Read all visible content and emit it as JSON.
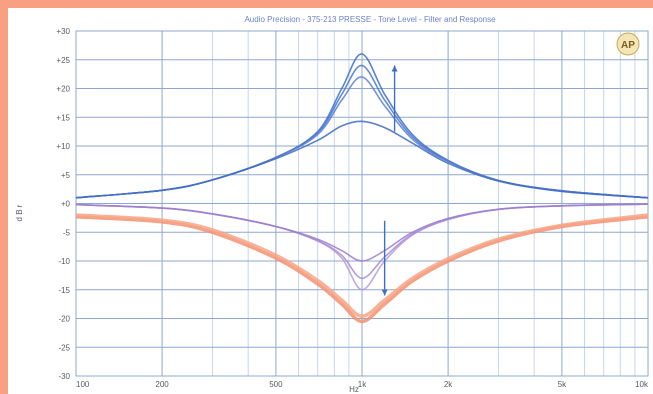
{
  "window": {
    "title": "Audio Precision - 375-213 PRESSE - Tone Level - Filter and Response"
  },
  "chart_data": {
    "type": "line",
    "title": "Audio Precision - 375-213 PRESSE - Tone Level - Filter and Response",
    "xlabel": "Hz",
    "ylabel": "d B r",
    "x_scale": "log",
    "xlim": [
      100,
      10000
    ],
    "ylim": [
      -30,
      30
    ],
    "grid": true,
    "x_ticks": [
      {
        "v": 100,
        "label": "100"
      },
      {
        "v": 200,
        "label": "200"
      },
      {
        "v": 500,
        "label": "500"
      },
      {
        "v": 1000,
        "label": "1k"
      },
      {
        "v": 2000,
        "label": "2k"
      },
      {
        "v": 5000,
        "label": "5k"
      },
      {
        "v": 10000,
        "label": "10k"
      }
    ],
    "y_ticks": [
      {
        "v": 30,
        "label": "+30"
      },
      {
        "v": 25,
        "label": "+25"
      },
      {
        "v": 20,
        "label": "+20"
      },
      {
        "v": 15,
        "label": "+15"
      },
      {
        "v": 10,
        "label": "+10"
      },
      {
        "v": 5,
        "label": "+5"
      },
      {
        "v": 0,
        "label": "+0"
      },
      {
        "v": -5,
        "label": "-5"
      },
      {
        "v": -10,
        "label": "-10"
      },
      {
        "v": -15,
        "label": "-15"
      },
      {
        "v": -20,
        "label": "-20"
      },
      {
        "v": -25,
        "label": "-25"
      },
      {
        "v": -30,
        "label": "-30"
      }
    ],
    "annotations": [
      {
        "text": "AP",
        "type": "logo"
      }
    ],
    "series": [
      {
        "color": "#3b6fc9",
        "group": "boost",
        "x": [
          100,
          200,
          300,
          500,
          700,
          850,
          1000,
          1200,
          1500,
          2000,
          3000,
          5000,
          10000
        ],
        "y": [
          1,
          2.3,
          4.1,
          8.0,
          12.5,
          20.0,
          26.0,
          19.0,
          12.0,
          7.5,
          4.0,
          2.2,
          1.0
        ]
      },
      {
        "color": "#4577cf",
        "group": "boost",
        "x": [
          100,
          200,
          300,
          500,
          700,
          850,
          1000,
          1200,
          1500,
          2000,
          3000,
          5000,
          10000
        ],
        "y": [
          1,
          2.3,
          4.1,
          8.0,
          12.3,
          19.0,
          24.0,
          18.0,
          11.6,
          7.4,
          4.0,
          2.2,
          1.0
        ]
      },
      {
        "color": "#5a7fd0",
        "group": "boost",
        "x": [
          100,
          200,
          300,
          500,
          700,
          850,
          1000,
          1200,
          1500,
          2000,
          3000,
          5000,
          10000
        ],
        "y": [
          1,
          2.3,
          4.1,
          8.0,
          12.0,
          18.0,
          22.0,
          17.0,
          11.2,
          7.3,
          4.0,
          2.2,
          1.0
        ]
      },
      {
        "color": "#3f6bc2",
        "group": "boost",
        "x": [
          100,
          200,
          300,
          500,
          700,
          850,
          1000,
          1200,
          1500,
          2000,
          3000,
          5000,
          10000
        ],
        "y": [
          1,
          2.3,
          4.1,
          7.8,
          11.0,
          13.5,
          14.3,
          13.2,
          10.5,
          7.0,
          3.9,
          2.1,
          1.0
        ]
      },
      {
        "color": "#b59bdc",
        "group": "cut",
        "x": [
          100,
          200,
          300,
          500,
          700,
          850,
          1000,
          1200,
          1500,
          2000,
          3000,
          5000,
          10000
        ],
        "y": [
          -0.2,
          -0.8,
          -1.8,
          -4.0,
          -6.5,
          -9.5,
          -15.0,
          -10.0,
          -5.5,
          -2.8,
          -1.0,
          -0.4,
          -0.1
        ]
      },
      {
        "color": "#a88ad6",
        "group": "cut",
        "x": [
          100,
          200,
          300,
          500,
          700,
          850,
          1000,
          1200,
          1500,
          2000,
          3000,
          5000,
          10000
        ],
        "y": [
          -0.2,
          -0.8,
          -1.8,
          -4.0,
          -6.5,
          -9.0,
          -13.0,
          -9.3,
          -5.3,
          -2.7,
          -1.0,
          -0.4,
          -0.1
        ]
      },
      {
        "color": "#9a7ccf",
        "group": "cut",
        "x": [
          100,
          200,
          300,
          500,
          700,
          850,
          1000,
          1200,
          1500,
          2000,
          3000,
          5000,
          10000
        ],
        "y": [
          -0.2,
          -0.8,
          -1.8,
          -4.0,
          -6.2,
          -8.2,
          -10.0,
          -8.2,
          -5.0,
          -2.6,
          -1.0,
          -0.4,
          -0.1
        ]
      },
      {
        "color": "#f29070",
        "group": "cut",
        "x": [
          100,
          200,
          300,
          500,
          700,
          850,
          1000,
          1200,
          1500,
          2000,
          3000,
          5000,
          10000
        ],
        "y": [
          -2.3,
          -3.2,
          -5.0,
          -9.5,
          -14.0,
          -17.5,
          -20.5,
          -17.5,
          -13.5,
          -10.0,
          -6.5,
          -4.0,
          -2.3
        ]
      },
      {
        "color": "#f7a486",
        "group": "cut",
        "x": [
          100,
          200,
          300,
          500,
          700,
          850,
          1000,
          1200,
          1500,
          2000,
          3000,
          5000,
          10000
        ],
        "y": [
          -2.0,
          -2.9,
          -4.6,
          -9.0,
          -13.4,
          -16.8,
          -19.6,
          -16.8,
          -13.0,
          -9.6,
          -6.2,
          -3.8,
          -2.0
        ]
      }
    ],
    "arrows": [
      {
        "x": 1300,
        "y_from": 12.5,
        "y_to": 24,
        "color": "#3b6fc9"
      },
      {
        "x": 1200,
        "y_from": -3,
        "y_to": -16,
        "color": "#3b6fc9"
      }
    ]
  }
}
